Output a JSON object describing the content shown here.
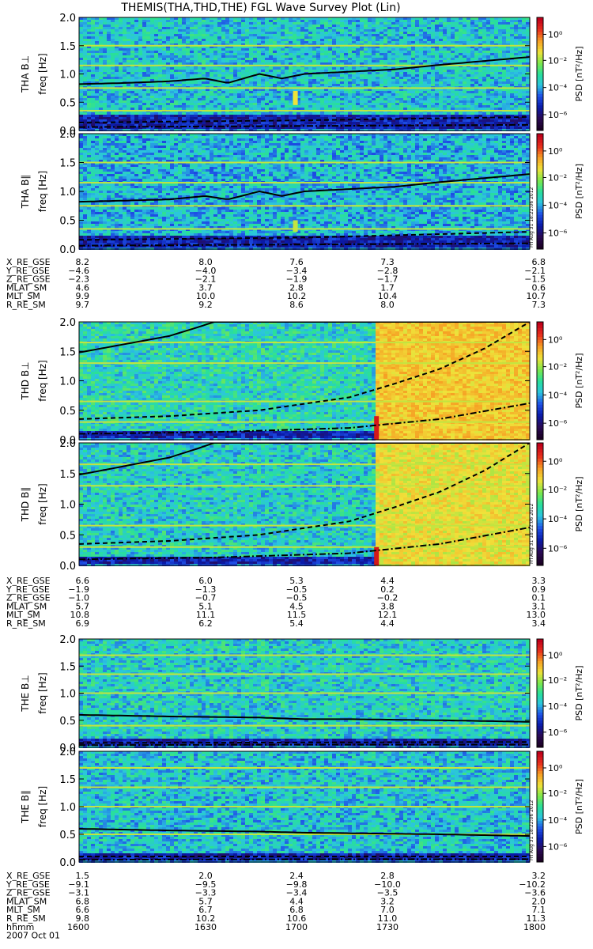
{
  "title": "THEMIS(THA,THD,THE) FGL Wave Survey Plot (Lin)",
  "colors": {
    "line": "#000000",
    "colormap": [
      "#1a0022",
      "#2a0a55",
      "#0a1aa8",
      "#1e4fe6",
      "#2bc4e0",
      "#28e09a",
      "#7ee84a",
      "#f0e23a",
      "#f6a024",
      "#e8301c",
      "#c0001a"
    ]
  },
  "chart_data": {
    "type": "heatmap",
    "panel_groups": [
      {
        "probe": "THA",
        "panels": [
          {
            "id": "tha-bperp",
            "ylabel": "THA B⊥",
            "ylabel2": "freq [Hz]",
            "ylim": [
              0,
              2.0
            ],
            "yticks": [
              "0.0",
              "0.5",
              "1.0",
              "1.5",
              "2.0"
            ],
            "colorbar": {
              "label": "PSD [nT²/Hz]",
              "ticks": [
                "10⁰",
                "10⁻²",
                "10⁻⁴",
                "10⁻⁶"
              ]
            },
            "base_level": 0.42,
            "low_band_dark": [
              0.04,
              0.28
            ],
            "bright_rows": [
              0.35,
              0.75,
              1.15,
              1.5
            ],
            "solid_curve": {
              "x": [
                0,
                0.1,
                0.2,
                0.28,
                0.33,
                0.4,
                0.45,
                0.5,
                0.6,
                0.7,
                0.8,
                0.9,
                1.0
              ],
              "y": [
                0.82,
                0.84,
                0.87,
                0.92,
                0.84,
                1.0,
                0.92,
                1.0,
                1.04,
                1.08,
                1.16,
                1.23,
                1.3
              ]
            },
            "dashed_curve": {
              "x": [
                0,
                0.5,
                1.0
              ],
              "y": [
                0.14,
                0.18,
                0.24
              ]
            },
            "dashdot_curve": {
              "x": [
                0,
                0.5,
                1.0
              ],
              "y": [
                0.06,
                0.08,
                0.1
              ]
            },
            "spikes": [
              {
                "x": 0.48,
                "y0": 0.45,
                "y1": 0.7,
                "level": 0.7
              }
            ]
          },
          {
            "id": "tha-bpar",
            "ylabel": "THA B∥",
            "ylabel2": "freq [Hz]",
            "ylim": [
              0,
              2.0
            ],
            "yticks": [
              "0.0",
              "0.5",
              "1.0",
              "1.5",
              "2.0"
            ],
            "colorbar": {
              "label": "PSD [nT²/Hz]",
              "ticks": [
                "10⁰",
                "10⁻²",
                "10⁻⁴",
                "10⁻⁶"
              ]
            },
            "stamp": "Fri Aug 31 18:22:06 2012",
            "base_level": 0.4,
            "low_band_dark": [
              0.04,
              0.26
            ],
            "bright_rows": [
              0.35,
              0.75,
              1.15,
              1.5
            ],
            "solid_curve": {
              "x": [
                0,
                0.1,
                0.2,
                0.28,
                0.33,
                0.4,
                0.45,
                0.5,
                0.6,
                0.7,
                0.8,
                0.9,
                1.0
              ],
              "y": [
                0.82,
                0.84,
                0.86,
                0.92,
                0.86,
                1.0,
                0.92,
                1.0,
                1.04,
                1.08,
                1.16,
                1.23,
                1.3
              ]
            },
            "dashed_curve": {
              "x": [
                0,
                0.5,
                1.0
              ],
              "y": [
                0.16,
                0.2,
                0.3
              ]
            },
            "dashdot_curve": {
              "x": [
                0,
                0.5,
                1.0
              ],
              "y": [
                0.06,
                0.08,
                0.1
              ]
            },
            "spikes": [
              {
                "x": 0.48,
                "y0": 0.3,
                "y1": 0.5,
                "level": 0.66
              }
            ]
          }
        ],
        "ephemeris": {
          "labels": [
            "X_RE_GSE",
            "Y_RE_GSE",
            "Z_RE_GSE",
            "MLAT_SM",
            "MLT_SM",
            "R_RE_SM"
          ],
          "rows": [
            [
              "8.2",
              "8.0",
              "7.6",
              "7.3",
              "6.8"
            ],
            [
              "−4.6",
              "−4.0",
              "−3.4",
              "−2.8",
              "−2.1"
            ],
            [
              "−2.3",
              "−2.1",
              "−1.9",
              "−1.7",
              "−1.5"
            ],
            [
              "4.6",
              "3.7",
              "2.8",
              "1.7",
              "0.6"
            ],
            [
              "9.9",
              "10.0",
              "10.2",
              "10.4",
              "10.7"
            ],
            [
              "9.7",
              "9.2",
              "8.6",
              "8.0",
              "7.3"
            ]
          ]
        }
      },
      {
        "probe": "THD",
        "panels": [
          {
            "id": "thd-bperp",
            "ylabel": "THD B⊥",
            "ylabel2": "freq [Hz]",
            "ylim": [
              0,
              2.0
            ],
            "yticks": [
              "0.0",
              "0.5",
              "1.0",
              "1.5",
              "2.0"
            ],
            "colorbar": {
              "label": "PSD [nT²/Hz]",
              "ticks": [
                "10⁰",
                "10⁻²",
                "10⁻⁴",
                "10⁻⁶"
              ]
            },
            "base_level": 0.46,
            "low_band_dark": [
              0.0,
              0.15
            ],
            "bright_rows": [
              0.3,
              0.65,
              1.3,
              1.65
            ],
            "storm": {
              "x0": 0.655,
              "level": 0.74
            },
            "solid_curve": {
              "x": [
                0,
                0.1,
                0.2,
                0.26,
                0.3
              ],
              "y": [
                1.48,
                1.62,
                1.76,
                1.9,
                2.0
              ]
            },
            "dashed_curve": {
              "x": [
                0,
                0.2,
                0.4,
                0.6,
                0.7,
                0.8,
                0.9,
                1.0
              ],
              "y": [
                0.35,
                0.4,
                0.5,
                0.72,
                0.95,
                1.2,
                1.55,
                2.0
              ]
            },
            "dashdot_curve": {
              "x": [
                0,
                0.3,
                0.6,
                0.8,
                1.0
              ],
              "y": [
                0.1,
                0.13,
                0.2,
                0.35,
                0.62
              ]
            },
            "spikes": [
              {
                "x": 0.66,
                "y0": 0.0,
                "y1": 0.4,
                "level": 0.95
              }
            ]
          },
          {
            "id": "thd-bpar",
            "ylabel": "THD B∥",
            "ylabel2": "freq [Hz]",
            "ylim": [
              0,
              2.0
            ],
            "yticks": [
              "0.0",
              "0.5",
              "1.0",
              "1.5",
              "2.0"
            ],
            "colorbar": {
              "label": "PSD [nT²/Hz]",
              "ticks": [
                "10⁰",
                "10⁻²",
                "10⁻⁴",
                "10⁻⁶"
              ]
            },
            "stamp": "Fri Aug 31 18:22:06 2012",
            "base_level": 0.44,
            "low_band_dark": [
              0.0,
              0.15
            ],
            "bright_rows": [
              0.3,
              0.65,
              1.3,
              1.65
            ],
            "storm": {
              "x0": 0.655,
              "level": 0.7
            },
            "solid_curve": {
              "x": [
                0,
                0.1,
                0.2,
                0.26,
                0.3
              ],
              "y": [
                1.48,
                1.62,
                1.76,
                1.9,
                2.0
              ]
            },
            "dashed_curve": {
              "x": [
                0,
                0.2,
                0.4,
                0.6,
                0.7,
                0.8,
                0.9,
                1.0
              ],
              "y": [
                0.35,
                0.4,
                0.5,
                0.72,
                0.95,
                1.2,
                1.55,
                2.0
              ]
            },
            "dashdot_curve": {
              "x": [
                0,
                0.3,
                0.6,
                0.8,
                1.0
              ],
              "y": [
                0.1,
                0.13,
                0.2,
                0.35,
                0.62
              ]
            },
            "spikes": [
              {
                "x": 0.66,
                "y0": 0.0,
                "y1": 0.3,
                "level": 0.95
              }
            ]
          }
        ],
        "ephemeris": {
          "labels": [
            "X_RE_GSE",
            "Y_RE_GSE",
            "Z_RE_GSE",
            "MLAT_SM",
            "MLT_SM",
            "R_RE_SM"
          ],
          "rows": [
            [
              "6.6",
              "6.0",
              "5.3",
              "4.4",
              "3.3"
            ],
            [
              "−1.9",
              "−1.3",
              "−0.5",
              "0.2",
              "0.9"
            ],
            [
              "−1.0",
              "−0.7",
              "−0.5",
              "−0.2",
              "0.1"
            ],
            [
              "5.7",
              "5.1",
              "4.5",
              "3.8",
              "3.1"
            ],
            [
              "10.8",
              "11.1",
              "11.5",
              "12.1",
              "13.0"
            ],
            [
              "6.9",
              "6.2",
              "5.4",
              "4.4",
              "3.4"
            ]
          ]
        }
      },
      {
        "probe": "THE",
        "panels": [
          {
            "id": "the-bperp",
            "ylabel": "THE B⊥",
            "ylabel2": "freq [Hz]",
            "ylim": [
              0,
              2.0
            ],
            "yticks": [
              "0.0",
              "0.5",
              "1.0",
              "1.5",
              "2.0"
            ],
            "colorbar": {
              "label": "PSD [nT²/Hz]",
              "ticks": [
                "10⁰",
                "10⁻²",
                "10⁻⁴",
                "10⁻⁶"
              ]
            },
            "base_level": 0.44,
            "low_band_dark": [
              0.0,
              0.18
            ],
            "bright_rows": [
              0.4,
              1.0,
              1.35,
              1.7
            ],
            "solid_curve": {
              "x": [
                0,
                0.2,
                0.4,
                0.5,
                0.6,
                0.8,
                1.0
              ],
              "y": [
                0.6,
                0.57,
                0.55,
                0.52,
                0.52,
                0.5,
                0.47
              ]
            },
            "dashed_curve": {
              "x": [
                0,
                0.5,
                1.0
              ],
              "y": [
                0.08,
                0.09,
                0.1
              ]
            },
            "dashdot_curve": {
              "x": [
                0,
                0.5,
                1.0
              ],
              "y": [
                0.04,
                0.05,
                0.05
              ]
            },
            "spikes": []
          },
          {
            "id": "the-bpar",
            "ylabel": "THE B∥",
            "ylabel2": "freq [Hz]",
            "ylim": [
              0,
              2.0
            ],
            "yticks": [
              "0.0",
              "0.5",
              "1.0",
              "1.5",
              "2.0"
            ],
            "colorbar": {
              "label": "PSD [nT²/Hz]",
              "ticks": [
                "10⁰",
                "10⁻²",
                "10⁻⁴",
                "10⁻⁶"
              ]
            },
            "stamp": "Fri Aug 31 18:22:06 2012",
            "base_level": 0.42,
            "low_band_dark": [
              0.0,
              0.18
            ],
            "bright_rows": [
              0.5,
              1.0,
              1.35,
              1.7
            ],
            "solid_curve": {
              "x": [
                0,
                0.2,
                0.4,
                0.5,
                0.6,
                0.8,
                1.0
              ],
              "y": [
                0.6,
                0.57,
                0.55,
                0.53,
                0.52,
                0.5,
                0.47
              ]
            },
            "dashed_curve": {
              "x": [
                0,
                0.5,
                1.0
              ],
              "y": [
                0.1,
                0.1,
                0.1
              ]
            },
            "dashdot_curve": {
              "x": [
                0,
                0.5,
                1.0
              ],
              "y": [
                0.04,
                0.05,
                0.05
              ]
            },
            "spikes": []
          }
        ],
        "ephemeris": {
          "labels": [
            "X_RE_GSE",
            "Y_RE_GSE",
            "Z_RE_GSE",
            "MLAT_SM",
            "MLT_SM",
            "R_RE_SM",
            "hhmm"
          ],
          "rows": [
            [
              "1.5",
              "2.0",
              "2.4",
              "2.8",
              "3.2"
            ],
            [
              "−9.1",
              "−9.5",
              "−9.8",
              "−10.0",
              "−10.2"
            ],
            [
              "−3.1",
              "−3.3",
              "−3.4",
              "−3.5",
              "−3.6"
            ],
            [
              "6.8",
              "5.7",
              "4.4",
              "3.2",
              "2.0"
            ],
            [
              "6.6",
              "6.7",
              "6.8",
              "7.0",
              "7.1"
            ],
            [
              "9.8",
              "10.2",
              "10.6",
              "11.0",
              "11.3"
            ],
            [
              "1600",
              "1630",
              "1700",
              "1730",
              "1800"
            ]
          ]
        },
        "date": "2007 Oct 01"
      }
    ]
  }
}
